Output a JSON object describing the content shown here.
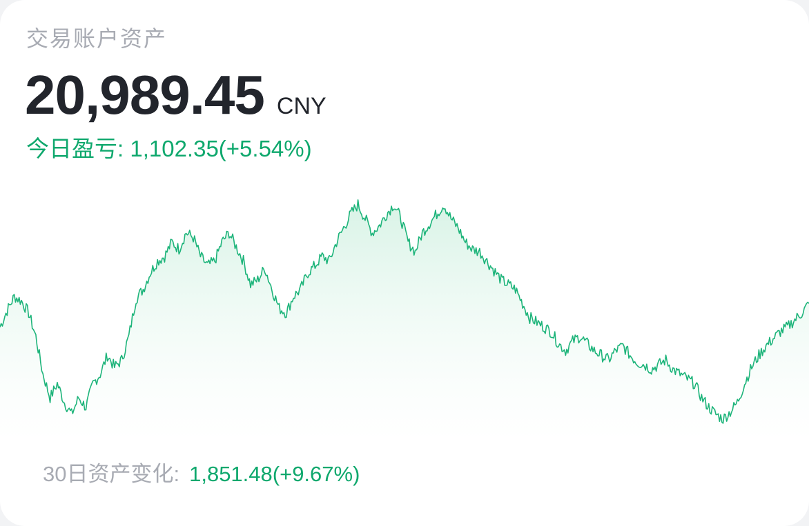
{
  "card": {
    "title": "交易账户资产",
    "balance": "20,989.45",
    "currency": "CNY",
    "today_label": "今日盈亏:",
    "today_value": "1,102.35(+5.54%)",
    "period_label": "30日资产变化:",
    "period_value": "1,851.48(+9.67%)"
  },
  "colors": {
    "accent": "#0fa86d",
    "line": "#1db47a",
    "fill_top": "#d8f3e6",
    "fill_bottom": "#ffffff",
    "label_gray": "#a8abb3",
    "balance_text": "#22252c"
  },
  "chart_data": {
    "type": "area",
    "title": "",
    "xlabel": "",
    "ylabel": "",
    "ylim": [
      0,
      100
    ],
    "grid": false,
    "series": [
      {
        "values": [
          42,
          49,
          55,
          53,
          48,
          38,
          22,
          12,
          18,
          10,
          5,
          12,
          8,
          18,
          22,
          30,
          25,
          28,
          38,
          54,
          58,
          65,
          70,
          72,
          78,
          75,
          82,
          80,
          72,
          68,
          70,
          78,
          82,
          76,
          70,
          60,
          62,
          67,
          58,
          50,
          48,
          55,
          58,
          65,
          68,
          72,
          70,
          78,
          84,
          90,
          94,
          88,
          82,
          85,
          90,
          94,
          88,
          78,
          74,
          82,
          86,
          90,
          94,
          88,
          84,
          78,
          75,
          74,
          70,
          66,
          62,
          60,
          58,
          52,
          46,
          44,
          42,
          40,
          35,
          32,
          36,
          38,
          35,
          32,
          30,
          28,
          32,
          34,
          30,
          27,
          26,
          24,
          26,
          28,
          24,
          22,
          20,
          18,
          12,
          8,
          5,
          3,
          6,
          10,
          18,
          25,
          30,
          34,
          37,
          40,
          42,
          45,
          48,
          52
        ]
      }
    ]
  }
}
